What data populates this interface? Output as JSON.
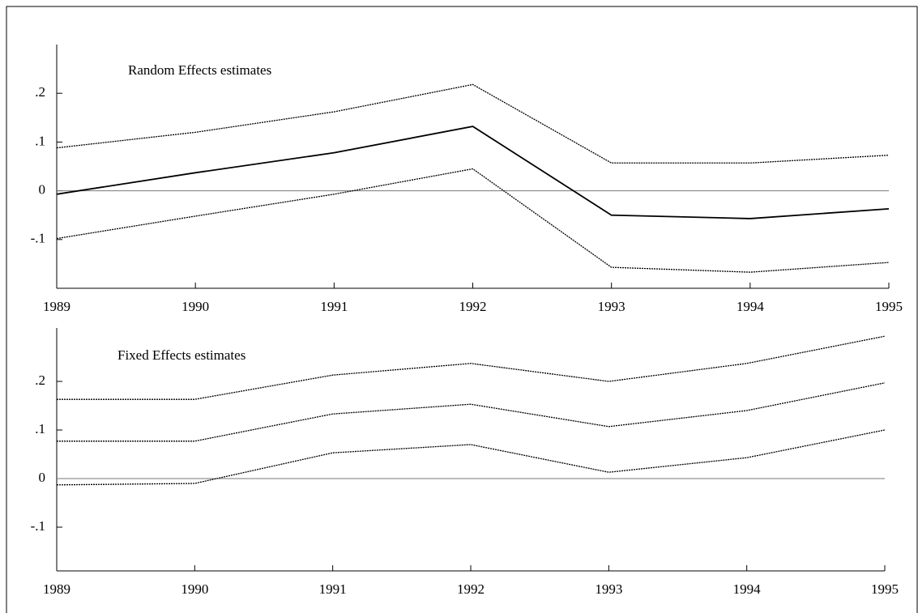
{
  "chart_data": [
    {
      "type": "line",
      "annotation": "Random Effects estimates",
      "x": [
        1989,
        1990,
        1991,
        1992,
        1993,
        1994,
        1995
      ],
      "xlim": [
        1989,
        1995
      ],
      "xticks": [
        1989,
        1990,
        1991,
        1992,
        1993,
        1994,
        1995
      ],
      "ylim": [
        -0.2,
        0.3
      ],
      "yticks": [
        {
          "value": -0.1,
          "label": "-.1"
        },
        0,
        {
          "value": 0.1,
          "label": ".1"
        },
        {
          "value": 0.2,
          "label": ".2"
        }
      ],
      "zero_line": true,
      "series": [
        {
          "color": "#000000",
          "dashed": true,
          "values": [
            0.088,
            0.12,
            0.162,
            0.218,
            0.057,
            0.057,
            0.073
          ]
        },
        {
          "color": "#000000",
          "dashed": false,
          "values": [
            -0.007,
            0.037,
            0.078,
            0.132,
            -0.05,
            -0.057,
            -0.037
          ]
        },
        {
          "color": "#000000",
          "dashed": true,
          "values": [
            -0.098,
            -0.052,
            -0.007,
            0.045,
            -0.157,
            -0.167,
            -0.147
          ]
        }
      ]
    },
    {
      "type": "line",
      "annotation": "Fixed Effects estimates",
      "x": [
        1989,
        1990,
        1991,
        1992,
        1993,
        1994,
        1995
      ],
      "xlim": [
        1989,
        1995
      ],
      "xticks": [
        1989,
        1990,
        1991,
        1992,
        1993,
        1994,
        1995
      ],
      "ylim": [
        -0.19,
        0.31
      ],
      "yticks": [
        {
          "value": -0.1,
          "label": "-.1"
        },
        0,
        {
          "value": 0.1,
          "label": ".1"
        },
        {
          "value": 0.2,
          "label": ".2"
        }
      ],
      "zero_line": true,
      "series": [
        {
          "color": "#000000",
          "dashed": true,
          "values": [
            0.163,
            0.163,
            0.213,
            0.237,
            0.2,
            0.237,
            0.293
          ]
        },
        {
          "color": "#000000",
          "dashed": true,
          "values": [
            0.077,
            0.077,
            0.133,
            0.153,
            0.107,
            0.14,
            0.197
          ]
        },
        {
          "color": "#000000",
          "dashed": true,
          "values": [
            -0.013,
            -0.01,
            0.053,
            0.07,
            0.013,
            0.043,
            0.1
          ]
        }
      ]
    }
  ]
}
